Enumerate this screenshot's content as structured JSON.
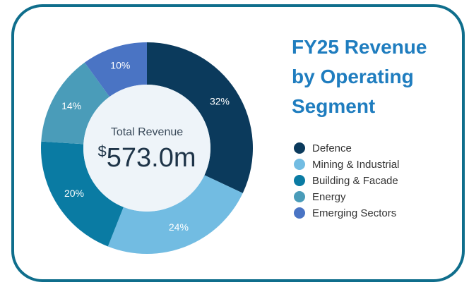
{
  "chart_data": {
    "type": "donut",
    "title": "FY25 Revenue by Operating Segment",
    "center_label": "Total Revenue",
    "center_currency": "$",
    "center_value": "573.0m",
    "categories": [
      "Defence",
      "Mining & Industrial",
      "Building & Facade",
      "Energy",
      "Emerging Sectors"
    ],
    "values": [
      32,
      24,
      20,
      14,
      10
    ],
    "value_labels": [
      "32%",
      "24%",
      "20%",
      "14%",
      "10%"
    ],
    "colors": [
      "#0b3a5c",
      "#72bce2",
      "#0a7ba3",
      "#4a9cb9",
      "#4a74c4"
    ],
    "legend": "right"
  }
}
